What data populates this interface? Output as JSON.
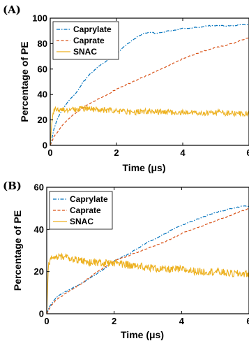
{
  "chart_data": [
    {
      "panel_label": "(A)",
      "type": "line",
      "xlabel": "Time (μs)",
      "ylabel": "Percentage of PE",
      "xlim": [
        0,
        6
      ],
      "ylim": [
        0,
        100
      ],
      "xticks": [
        "0",
        "2",
        "4",
        "6"
      ],
      "yticks": [
        "0",
        "20",
        "40",
        "60",
        "80",
        "100"
      ],
      "legend_position": "top-left",
      "series": [
        {
          "name": "Caprylate",
          "color": "#0072BD",
          "style": "dashdot",
          "x": [
            0,
            0.05,
            0.1,
            0.2,
            0.3,
            0.4,
            0.5,
            0.6,
            0.8,
            1.0,
            1.2,
            1.5,
            1.8,
            2.0,
            2.2,
            2.5,
            2.8,
            3.0,
            3.2,
            3.4,
            3.6,
            3.8,
            4.0,
            4.2,
            4.5,
            4.8,
            5.0,
            5.5,
            6.0
          ],
          "y": [
            0,
            5,
            12,
            20,
            25,
            29,
            33,
            36,
            42,
            50,
            56,
            63,
            68,
            72,
            77,
            83,
            88,
            89,
            88,
            89,
            90,
            91,
            92,
            92,
            93,
            94,
            94,
            94,
            95
          ]
        },
        {
          "name": "Caprate",
          "color": "#D95319",
          "style": "dashed",
          "x": [
            0,
            0.1,
            0.2,
            0.4,
            0.6,
            0.8,
            1.0,
            1.5,
            2.0,
            2.5,
            3.0,
            3.5,
            4.0,
            4.5,
            5.0,
            5.5,
            6.0
          ],
          "y": [
            0,
            6,
            10,
            17,
            22,
            26,
            30,
            37,
            44,
            50,
            56,
            62,
            68,
            73,
            77,
            80,
            85
          ]
        },
        {
          "name": "SNAC",
          "color": "#EDB120",
          "style": "solid",
          "noisy": true,
          "noise": 2.2,
          "x": [
            0,
            0.03,
            0.08,
            0.15,
            0.3,
            0.5,
            1.0,
            1.5,
            2.0,
            2.5,
            3.0,
            3.5,
            4.0,
            4.5,
            5.0,
            5.5,
            6.0
          ],
          "y": [
            0,
            12,
            25,
            29,
            28,
            28,
            29,
            28,
            27,
            26,
            27,
            26,
            26,
            25,
            26,
            25,
            25
          ]
        }
      ]
    },
    {
      "panel_label": "(B)",
      "type": "line",
      "xlabel": "Time (μs)",
      "ylabel": "Percentage of PE",
      "xlim": [
        0,
        6
      ],
      "ylim": [
        0,
        60
      ],
      "xticks": [
        "0",
        "2",
        "4",
        "6"
      ],
      "yticks": [
        "0",
        "20",
        "40",
        "60"
      ],
      "legend_position": "top-left",
      "series": [
        {
          "name": "Caprylate",
          "color": "#0072BD",
          "style": "dashdot",
          "x": [
            0,
            0.1,
            0.3,
            0.5,
            1.0,
            1.5,
            2.0,
            2.5,
            3.0,
            3.5,
            4.0,
            4.5,
            5.0,
            5.5,
            5.8,
            6.0
          ],
          "y": [
            0,
            4,
            8,
            10,
            14,
            19,
            25,
            29,
            34,
            38,
            42,
            45,
            48,
            50,
            51,
            51
          ]
        },
        {
          "name": "Caprate",
          "color": "#D95319",
          "style": "dashed",
          "x": [
            0,
            0.1,
            0.3,
            0.5,
            1.0,
            1.5,
            2.0,
            2.5,
            3.0,
            3.5,
            4.0,
            4.5,
            5.0,
            5.5,
            6.0
          ],
          "y": [
            0,
            3,
            7,
            9,
            14,
            20,
            25,
            28,
            31,
            34,
            38,
            41,
            44,
            47,
            50
          ]
        },
        {
          "name": "SNAC",
          "color": "#EDB120",
          "style": "solid",
          "noisy": true,
          "noise": 1.8,
          "x": [
            0,
            0.05,
            0.2,
            0.5,
            1.0,
            1.5,
            2.0,
            2.5,
            3.0,
            3.5,
            4.0,
            4.5,
            5.0,
            5.5,
            6.0
          ],
          "y": [
            0,
            24,
            27,
            27,
            25,
            24,
            24,
            23,
            22,
            21,
            21,
            20,
            20,
            19,
            19
          ]
        }
      ]
    }
  ]
}
